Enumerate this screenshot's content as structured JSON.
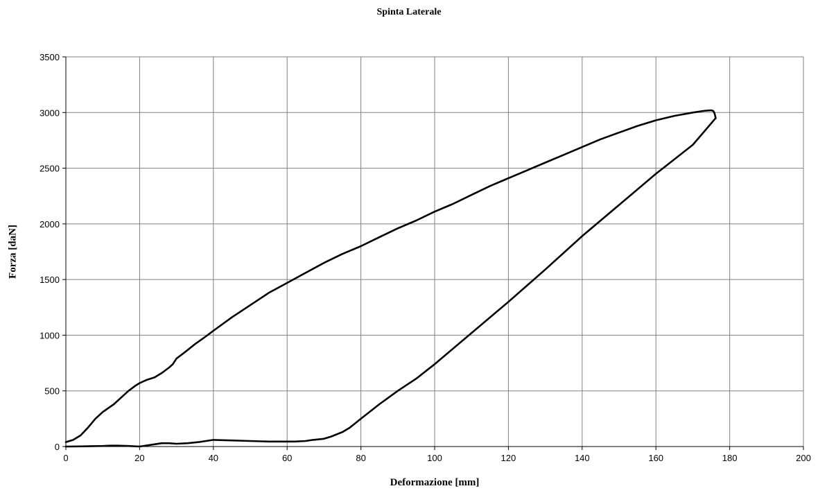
{
  "chart_data": {
    "type": "line",
    "title": "Spinta Laterale",
    "xlabel": "Deformazione [mm]",
    "ylabel": "Forza [daN]",
    "xlim": [
      0,
      200
    ],
    "ylim": [
      0,
      3500
    ],
    "xticks": [
      0,
      20,
      40,
      60,
      80,
      100,
      120,
      140,
      160,
      180,
      200
    ],
    "yticks": [
      0,
      500,
      1000,
      1500,
      2000,
      2500,
      3000,
      3500
    ],
    "grid": true,
    "legend": "none",
    "line_color": "#000000",
    "series": [
      {
        "x": [
          0,
          2,
          4,
          6,
          8,
          10,
          13,
          15,
          17,
          19,
          20,
          22,
          24,
          26,
          28,
          29,
          30,
          32,
          35,
          38,
          40,
          45,
          50,
          55,
          60,
          65,
          70,
          75,
          80,
          85,
          90,
          95,
          100,
          105,
          110,
          115,
          120,
          125,
          130,
          135,
          140,
          145,
          150,
          155,
          160,
          165,
          170,
          173,
          175,
          175.5,
          175.8,
          176,
          176.2
        ],
        "y": [
          40,
          60,
          100,
          170,
          250,
          310,
          380,
          440,
          500,
          550,
          570,
          600,
          620,
          660,
          710,
          740,
          790,
          840,
          920,
          990,
          1040,
          1160,
          1270,
          1380,
          1470,
          1560,
          1650,
          1730,
          1800,
          1880,
          1960,
          2030,
          2110,
          2180,
          2260,
          2340,
          2410,
          2480,
          2550,
          2620,
          2690,
          2760,
          2820,
          2880,
          2930,
          2970,
          3000,
          3015,
          3020,
          3015,
          3000,
          2980,
          2950
        ]
      },
      {
        "x": [
          176.2,
          170,
          160,
          150,
          140,
          130,
          120,
          110,
          100,
          95,
          90,
          85,
          80,
          77,
          75,
          72,
          70,
          67,
          65,
          62,
          60,
          55,
          50,
          45,
          40,
          38,
          36,
          33,
          30,
          28,
          26,
          24,
          22,
          20,
          17,
          14,
          12,
          10,
          5,
          0
        ],
        "y": [
          2950,
          2710,
          2450,
          2170,
          1890,
          1590,
          1300,
          1020,
          740,
          610,
          500,
          380,
          250,
          170,
          130,
          90,
          70,
          60,
          50,
          45,
          45,
          45,
          50,
          55,
          60,
          50,
          40,
          30,
          25,
          30,
          30,
          20,
          10,
          0,
          5,
          8,
          8,
          5,
          2,
          0
        ]
      }
    ]
  }
}
